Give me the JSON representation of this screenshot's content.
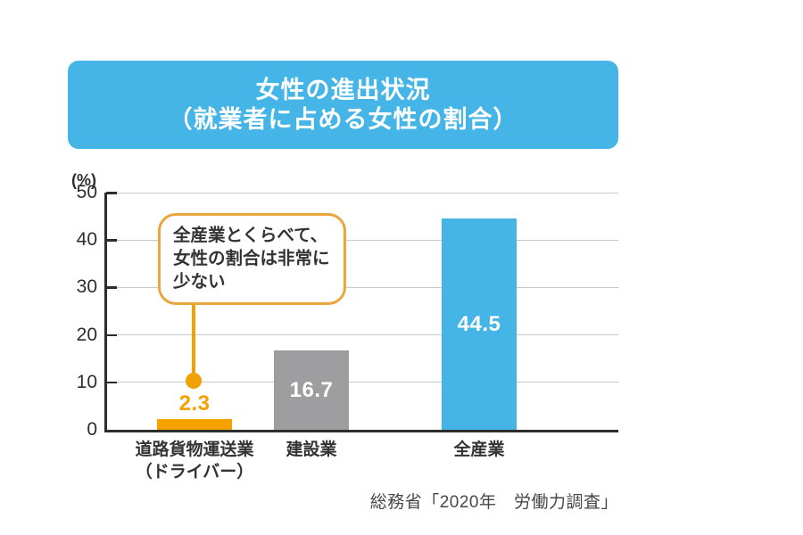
{
  "title": {
    "line1": "女性の進出状況",
    "line2": "（就業者に占める女性の割合）"
  },
  "callout": {
    "lines": [
      "全産業とくらべて、",
      "女性の割合は非常に",
      "少ない"
    ]
  },
  "source": {
    "text": "総務省「2020年　労働力調査」"
  },
  "colors": {
    "banner_bg": "#45B5E8",
    "accent_orange": "#F0A202",
    "callout_border": "#E8A63B",
    "bar_orange": "#F5A200",
    "bar_gray": "#9E9EA0",
    "bar_blue": "#45B5E8",
    "grid": "#C9C9C9",
    "axis": "#2D2D2D",
    "text": "#333333"
  },
  "chart_data": {
    "type": "bar",
    "title": "女性の進出状況（就業者に占める女性の割合）",
    "ylabel": "(%)",
    "ymin": 0,
    "ymax": 50,
    "yticks": [
      0,
      10,
      20,
      30,
      40,
      50
    ],
    "grid": true,
    "legend": "none",
    "categories": [
      "道路貨物運送業（ドライバー）",
      "建設業",
      "全産業"
    ],
    "category_lines": [
      [
        "道路貨物運送業",
        "（ドライバー）"
      ],
      [
        "建設業"
      ],
      [
        "全産業"
      ]
    ],
    "values": [
      2.3,
      16.7,
      44.5
    ],
    "value_labels": [
      "2.3",
      "16.7",
      "44.5"
    ],
    "bar_colors": [
      "#F5A200",
      "#9E9EA0",
      "#45B5E8"
    ],
    "value_label_positions": [
      "above",
      "inside",
      "inside"
    ],
    "value_label_colors": [
      "#F5A200",
      "#FFFFFF",
      "#FFFFFF"
    ],
    "annotation": "全産業とくらべて、女性の割合は非常に少ない",
    "annotation_target": "道路貨物運送業（ドライバー）"
  }
}
